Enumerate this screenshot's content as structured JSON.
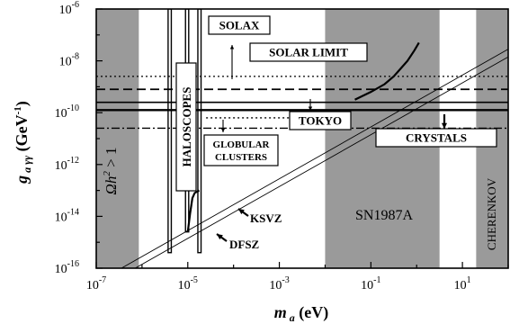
{
  "chart_data": {
    "type": "line",
    "title": "",
    "xlabel": {
      "base": "m",
      "sub": "a",
      "rest": " (eV)"
    },
    "ylabel": {
      "base": "g",
      "sub": "a γγ",
      "rest": " (GeV",
      "sup": "-1",
      "close": ")"
    },
    "xscale": "log",
    "yscale": "log",
    "xlim_log10": [
      -7,
      2
    ],
    "ylim_log10": [
      -16,
      -6
    ],
    "x_ticks": [
      {
        "exp": -7,
        "label": "10",
        "sup": "-7"
      },
      {
        "exp": -5,
        "label": "10",
        "sup": "-5"
      },
      {
        "exp": -3,
        "label": "10",
        "sup": "-3"
      },
      {
        "exp": -1,
        "label": "10",
        "sup": "-1"
      },
      {
        "exp": 1,
        "label": "10",
        "sup": "1"
      }
    ],
    "y_ticks": [
      {
        "exp": -6,
        "label": "10",
        "sup": "-6"
      },
      {
        "exp": -8,
        "label": "10",
        "sup": "-8"
      },
      {
        "exp": -10,
        "label": "10",
        "sup": "-10"
      },
      {
        "exp": -12,
        "label": "10",
        "sup": "-12"
      },
      {
        "exp": -14,
        "label": "10",
        "sup": "-14"
      },
      {
        "exp": -16,
        "label": "10",
        "sup": "-16"
      }
    ],
    "excluded_regions": [
      {
        "name": "cosmology",
        "x_log10": [
          -7,
          -6.07
        ],
        "y_log10": [
          -16,
          -6
        ],
        "color": "#9a9a9a"
      },
      {
        "name": "sn1987a",
        "x_log10": [
          -2,
          0.5
        ],
        "y_log10": [
          -16,
          -6
        ],
        "color": "#9a9a9a",
        "label": "SN1987A"
      },
      {
        "name": "cherenkov",
        "x_log10": [
          1.3,
          2
        ],
        "y_log10": [
          -16,
          -6
        ],
        "color": "#9a9a9a",
        "label": "CHERENKOV"
      }
    ],
    "cosmology_label": {
      "text": "Ωh",
      "sup": "2",
      "rest": " > 1"
    },
    "horizontal_limits": [
      {
        "name": "solax",
        "y_log10": -8.6,
        "style": "dotted",
        "label": "SOLAX"
      },
      {
        "name": "solar-limit",
        "y_log10": -9.1,
        "style": "dashed",
        "label": "SOLAR LIMIT"
      },
      {
        "name": "tokyo-upper",
        "y_log10": -9.6,
        "style": "solid"
      },
      {
        "name": "tokyo-lower",
        "y_log10": -9.9,
        "style": "solid-thick",
        "label": "TOKYO"
      },
      {
        "name": "crystals",
        "y_log10": -10.6,
        "style": "dash-dot",
        "label": "CRYSTALS"
      },
      {
        "name": "globular-clusters",
        "y_log10": -10.2,
        "style": "dotted",
        "label_lines": [
          "GLOBULAR",
          "CLUSTERS"
        ]
      }
    ],
    "series": [
      {
        "name": "tokyo-helioscope-curve",
        "x_log10": [
          -1.35,
          -1.0,
          -0.7,
          -0.5,
          -0.35,
          -0.2,
          -0.05,
          0.05
        ],
        "y_log10": [
          -9.5,
          -9.2,
          -8.9,
          -8.6,
          -8.3,
          -8.0,
          -7.6,
          -7.3
        ]
      },
      {
        "name": "haloscope-curve",
        "x_log10": [
          -5.0,
          -4.95,
          -4.9,
          -4.85,
          -4.75
        ],
        "y_log10": [
          -14.6,
          -13.9,
          -13.3,
          -13.1,
          -13.0
        ]
      },
      {
        "name": "ksvz-line",
        "x_log10": [
          -7,
          2
        ],
        "y_log10": [
          -16.55,
          -7.55
        ],
        "label": "KSVZ"
      },
      {
        "name": "dfsz-line",
        "x_log10": [
          -7,
          2
        ],
        "y_log10": [
          -16.85,
          -7.85
        ],
        "label": "DFSZ"
      }
    ],
    "haloscope_bands": [
      {
        "x_log10": [
          -5.43,
          -5.36
        ],
        "y_log10": [
          -15.4,
          -6
        ]
      },
      {
        "x_log10": [
          -5.05,
          -4.98
        ],
        "y_log10": [
          -14.6,
          -6
        ]
      },
      {
        "x_log10": [
          -4.78,
          -4.71
        ],
        "y_log10": [
          -15.4,
          -6
        ]
      }
    ],
    "haloscope_label": "HALOSCOPES",
    "grid": false,
    "legend": "none"
  }
}
